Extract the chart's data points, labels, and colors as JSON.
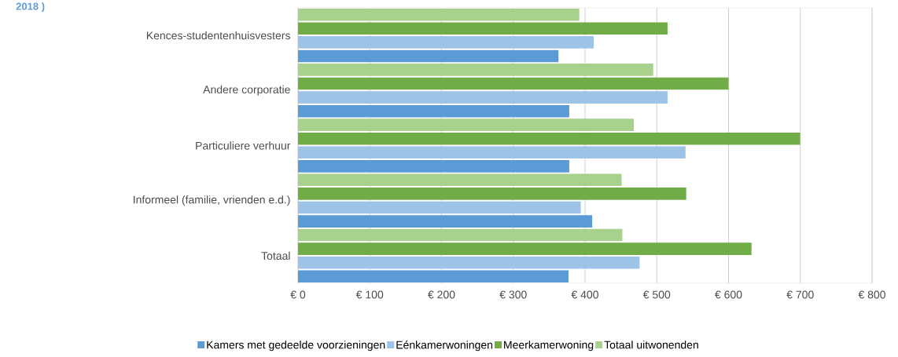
{
  "chart_data": {
    "type": "bar",
    "orientation": "horizontal",
    "title": "2018 )",
    "categories": [
      "Kences-studentenhuisvesters",
      "Andere corporatie",
      "Particuliere verhuur",
      "Informeel (familie, vrienden e.d.)",
      "Totaal"
    ],
    "series": [
      {
        "name": "Kamers met gedeelde voorzieningen",
        "color": "#5b9bd5",
        "values": [
          363,
          378,
          378,
          410,
          377
        ]
      },
      {
        "name": "Eénkamerwoningen",
        "color": "#9dc3e6",
        "values": [
          412,
          515,
          540,
          394,
          476
        ]
      },
      {
        "name": "Meerkamerwoning",
        "color": "#70ad47",
        "values": [
          515,
          600,
          700,
          541,
          632
        ]
      },
      {
        "name": "Totaal uitwonenden",
        "color": "#a9d18e",
        "values": [
          392,
          495,
          468,
          451,
          452
        ]
      }
    ],
    "xlim": [
      0,
      800
    ],
    "xticks": [
      {
        "value": 0,
        "label": "€ 0"
      },
      {
        "value": 100,
        "label": "€ 100"
      },
      {
        "value": 200,
        "label": "€ 200"
      },
      {
        "value": 300,
        "label": "€ 300"
      },
      {
        "value": 400,
        "label": "€ 400"
      },
      {
        "value": 500,
        "label": "€ 500"
      },
      {
        "value": 600,
        "label": "€ 600"
      },
      {
        "value": 700,
        "label": "€ 700"
      },
      {
        "value": 800,
        "label": "€ 800"
      }
    ],
    "grid": "x",
    "legend": "bottom"
  }
}
